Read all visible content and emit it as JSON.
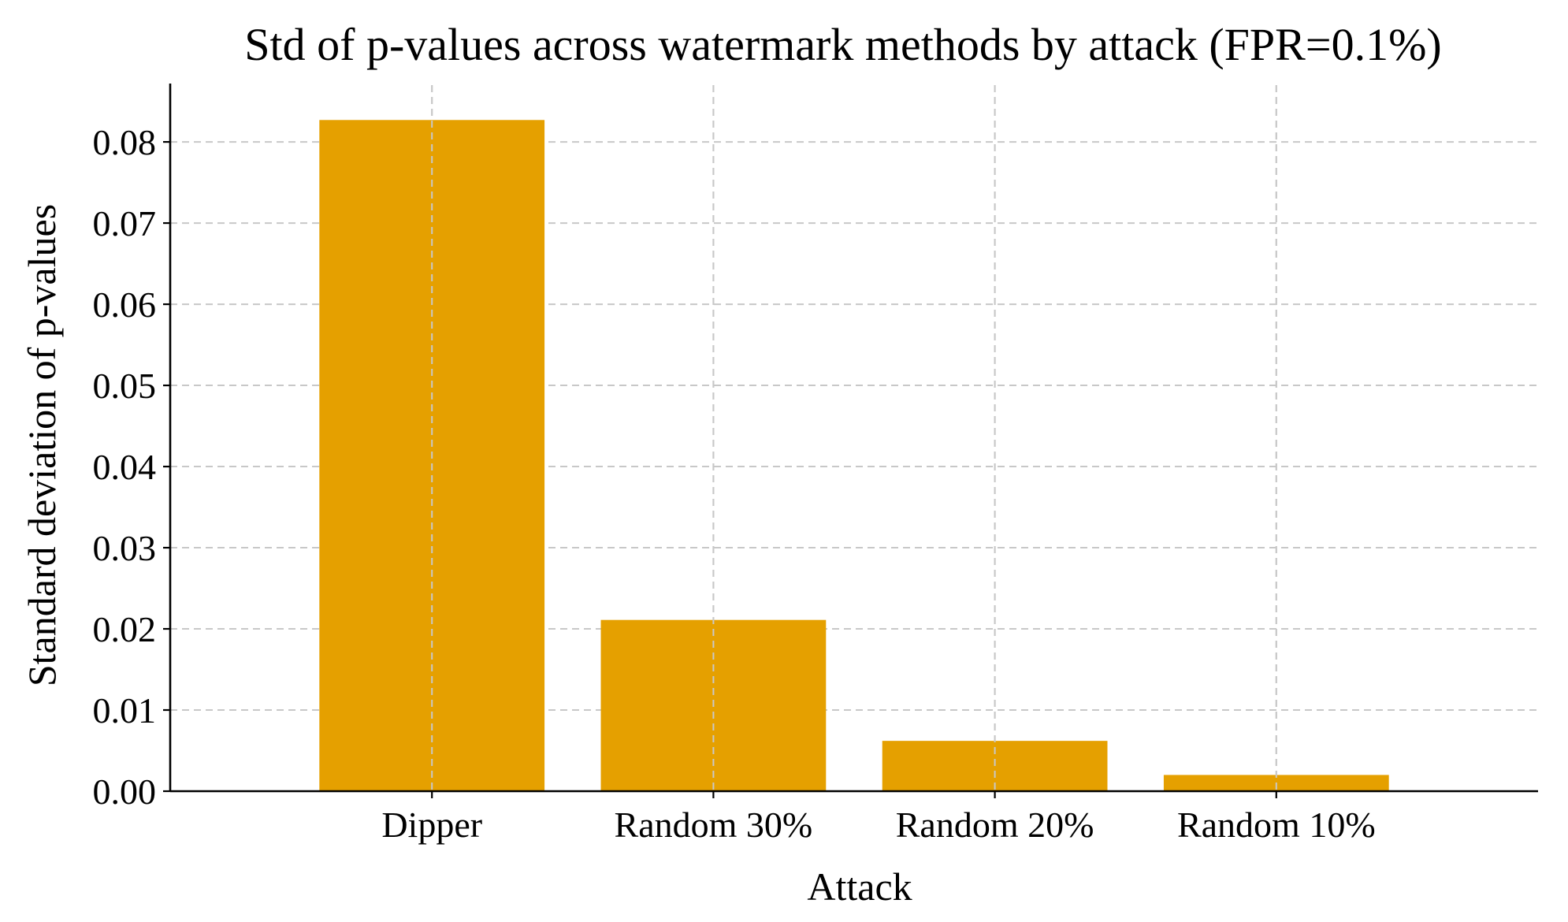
{
  "chart_data": {
    "type": "bar",
    "title": "Std of p-values across watermark methods by attack (FPR=0.1%)",
    "xlabel": "Attack",
    "ylabel": "Standard deviation of p-values",
    "categories": [
      "Dipper",
      "Random 30%",
      "Random 20%",
      "Random 10%"
    ],
    "values": [
      0.0827,
      0.0211,
      0.0062,
      0.002
    ],
    "ylim": [
      0,
      0.087
    ],
    "yticks": [
      0.0,
      0.01,
      0.02,
      0.03,
      0.04,
      0.05,
      0.06,
      0.07,
      0.08
    ],
    "ytick_labels": [
      "0.00",
      "0.01",
      "0.02",
      "0.03",
      "0.04",
      "0.05",
      "0.06",
      "0.07",
      "0.08"
    ],
    "bar_color": "#E5A000",
    "grid": true
  }
}
